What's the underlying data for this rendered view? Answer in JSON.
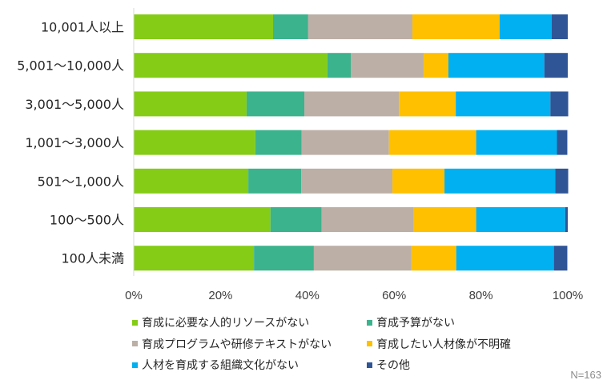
{
  "chart_data": {
    "type": "bar",
    "orientation": "horizontal",
    "stacked": "percent",
    "categories": [
      "10,001人以上",
      "5,001～10,000人",
      "3,001～5,000人",
      "1,001～3,000人",
      "501～1,000人",
      "100～500人",
      "100人未満"
    ],
    "series": [
      {
        "name": "育成に必要な人的リソースがない",
        "color": "#84cc16",
        "values": [
          32.1,
          44.6,
          26.0,
          28.0,
          26.4,
          31.5,
          27.7
        ]
      },
      {
        "name": "育成予算がない",
        "color": "#3bb38d",
        "values": [
          8.1,
          5.4,
          13.3,
          10.7,
          12.2,
          11.8,
          13.8
        ]
      },
      {
        "name": "育成プログラムや研修テキストがない",
        "color": "#bcafa6",
        "values": [
          24.0,
          16.8,
          21.8,
          20.1,
          21.0,
          21.2,
          22.5
        ]
      },
      {
        "name": "育成したい人材像が不明確",
        "color": "#ffc000",
        "values": [
          20.1,
          5.7,
          13.1,
          20.1,
          12.0,
          14.4,
          10.3
        ]
      },
      {
        "name": "人材を育成する組織文化がない",
        "color": "#00b0f0",
        "values": [
          12.0,
          22.1,
          21.8,
          18.6,
          25.5,
          20.5,
          22.5
        ]
      },
      {
        "name": "その他",
        "color": "#2f5597",
        "values": [
          3.7,
          5.4,
          4.1,
          2.4,
          3.0,
          0.6,
          3.1
        ]
      }
    ],
    "xticks": [
      "0%",
      "20%",
      "40%",
      "60%",
      "80%",
      "100%"
    ],
    "xlim": [
      0,
      100
    ],
    "grid": false,
    "legend_placement": "bottom",
    "note": "N=163"
  }
}
